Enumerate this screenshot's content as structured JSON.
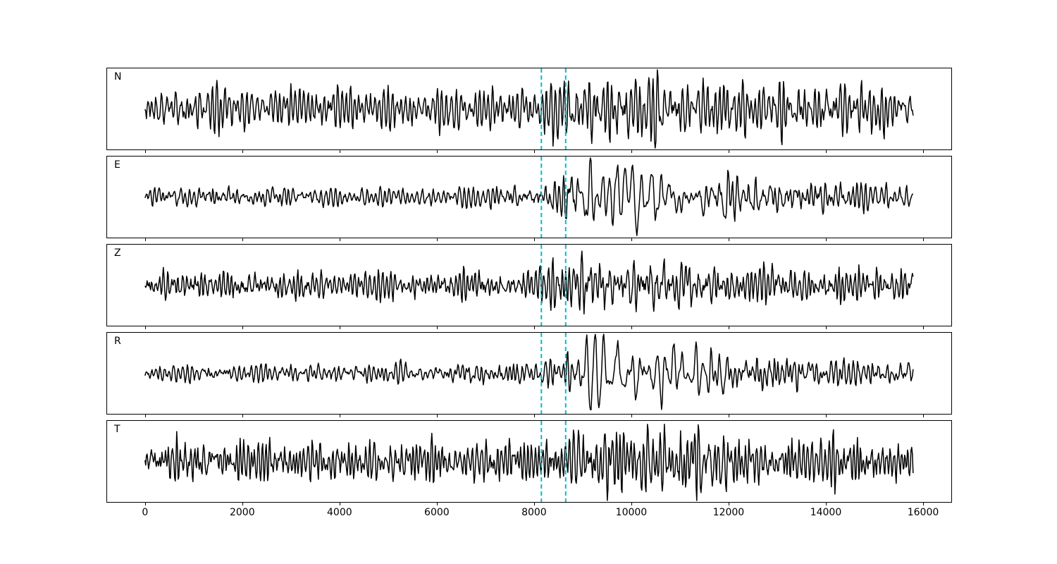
{
  "chart_data": {
    "type": "line",
    "kind": "seismogram-multipanel",
    "title": "",
    "xlabel": "",
    "ylabel": "",
    "background": "#ffffff",
    "trace_color": "#000000",
    "n_samples": 15800,
    "x_axis": {
      "ticks": [
        0,
        2000,
        4000,
        6000,
        8000,
        10000,
        12000,
        14000,
        16000
      ],
      "lim": [
        -790,
        16590
      ]
    },
    "pick_lines": {
      "x": [
        8150,
        8650
      ],
      "color": "#00bdc8",
      "style": "dashed",
      "width": 2
    },
    "channels": [
      {
        "label": "N",
        "seed": 11,
        "base_period": 90,
        "low_period": 125,
        "low_mix": 0.25,
        "low_window": [
          8600,
          9200,
          11500,
          13500
        ],
        "envelope": [
          [
            0,
            0.55
          ],
          [
            3000,
            0.58
          ],
          [
            7000,
            0.55
          ],
          [
            8100,
            0.62
          ],
          [
            8600,
            0.8
          ],
          [
            9200,
            0.92
          ],
          [
            10500,
            0.92
          ],
          [
            11500,
            0.78
          ],
          [
            12500,
            0.7
          ],
          [
            14000,
            0.66
          ],
          [
            15800,
            0.58
          ]
        ]
      },
      {
        "label": "E",
        "seed": 22,
        "base_period": 95,
        "low_period": 175,
        "low_mix": 0.8,
        "low_window": [
          8500,
          9000,
          11000,
          13000
        ],
        "envelope": [
          [
            0,
            0.24
          ],
          [
            6000,
            0.26
          ],
          [
            7800,
            0.3
          ],
          [
            8150,
            0.42
          ],
          [
            8650,
            0.6
          ],
          [
            9100,
            0.82
          ],
          [
            9700,
            0.92
          ],
          [
            10400,
            0.8
          ],
          [
            11200,
            0.55
          ],
          [
            12500,
            0.45
          ],
          [
            14000,
            0.38
          ],
          [
            15800,
            0.36
          ]
        ]
      },
      {
        "label": "Z",
        "seed": 33,
        "base_period": 85,
        "low_period": 130,
        "low_mix": 0.35,
        "low_window": [
          8200,
          8800,
          10500,
          12500
        ],
        "envelope": [
          [
            0,
            0.33
          ],
          [
            4000,
            0.37
          ],
          [
            7500,
            0.36
          ],
          [
            8250,
            0.58
          ],
          [
            8700,
            0.48
          ],
          [
            9300,
            0.88
          ],
          [
            9700,
            0.6
          ],
          [
            10500,
            0.55
          ],
          [
            12000,
            0.5
          ],
          [
            14000,
            0.44
          ],
          [
            15800,
            0.42
          ]
        ]
      },
      {
        "label": "R",
        "seed": 44,
        "base_period": 95,
        "low_period": 175,
        "low_mix": 0.8,
        "low_window": [
          8600,
          9100,
          11200,
          13200
        ],
        "envelope": [
          [
            0,
            0.22
          ],
          [
            6000,
            0.24
          ],
          [
            8000,
            0.3
          ],
          [
            8650,
            0.5
          ],
          [
            9100,
            0.75
          ],
          [
            9900,
            0.92
          ],
          [
            10700,
            0.85
          ],
          [
            11600,
            0.55
          ],
          [
            13000,
            0.42
          ],
          [
            14500,
            0.34
          ],
          [
            15800,
            0.3
          ]
        ]
      },
      {
        "label": "T",
        "seed": 55,
        "base_period": 80,
        "low_period": 120,
        "low_mix": 0.3,
        "low_window": [
          8600,
          9300,
          11800,
          13800
        ],
        "envelope": [
          [
            0,
            0.5
          ],
          [
            5000,
            0.53
          ],
          [
            8000,
            0.55
          ],
          [
            8700,
            0.68
          ],
          [
            9500,
            0.9
          ],
          [
            10300,
            0.82
          ],
          [
            11000,
            0.92
          ],
          [
            12000,
            0.7
          ],
          [
            13500,
            0.62
          ],
          [
            15800,
            0.55
          ]
        ]
      }
    ]
  }
}
